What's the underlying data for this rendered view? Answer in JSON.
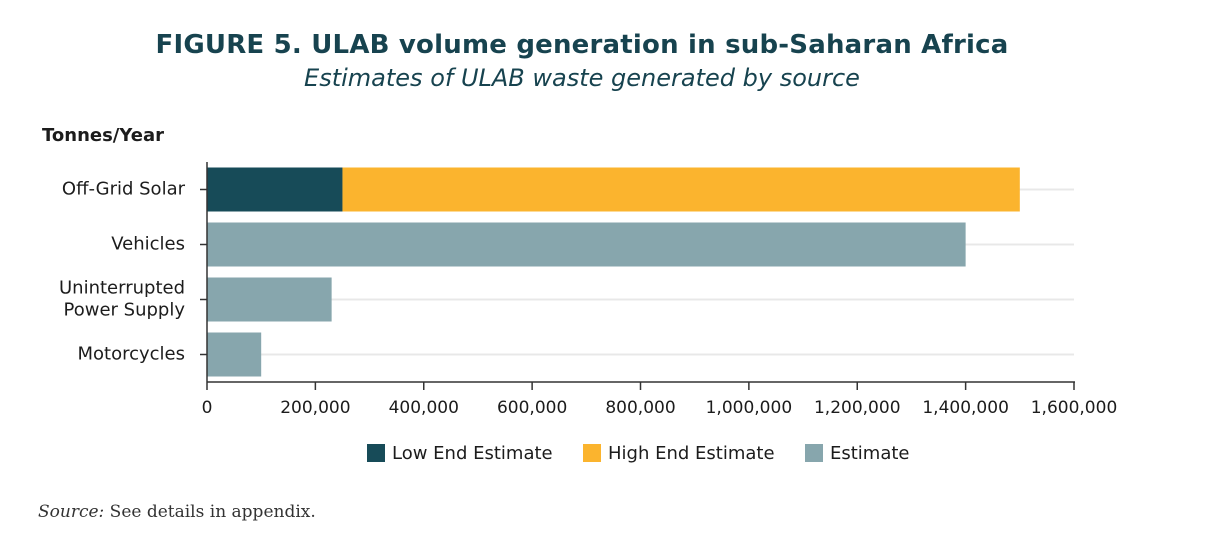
{
  "chart_data": {
    "type": "bar",
    "orientation": "horizontal",
    "stacked": true,
    "title": "FIGURE 5. ULAB volume generation in sub-Saharan Africa",
    "subtitle": "Estimates of ULAB waste generated by source",
    "ylabel": "Tonnes/Year",
    "xlim": [
      0,
      1600000
    ],
    "xticks": [
      0,
      200000,
      400000,
      600000,
      800000,
      1000000,
      1200000,
      1400000,
      1600000
    ],
    "xtick_labels": [
      "0",
      "200,000",
      "400,000",
      "600,000",
      "800,000",
      "1,000,000",
      "1,200,000",
      "1,400,000",
      "1,600,000"
    ],
    "categories": [
      {
        "lines": [
          "Off-Grid Solar"
        ]
      },
      {
        "lines": [
          "Vehicles"
        ]
      },
      {
        "lines": [
          "Uninterrupted",
          "Power Supply"
        ]
      },
      {
        "lines": [
          "Motorcycles"
        ]
      }
    ],
    "series": [
      {
        "name": "Low End Estimate",
        "color": "#174b58",
        "values": [
          250000,
          null,
          null,
          null
        ]
      },
      {
        "name": "High End Estimate",
        "color": "#fbb42e",
        "values": [
          1250000,
          null,
          null,
          null
        ]
      },
      {
        "name": "Estimate",
        "color": "#87a6ad",
        "values": [
          null,
          1400000,
          230000,
          100000
        ]
      }
    ],
    "grid": true,
    "legend_position": "bottom"
  },
  "source": {
    "label": "Source:",
    "text": " See details in appendix."
  }
}
